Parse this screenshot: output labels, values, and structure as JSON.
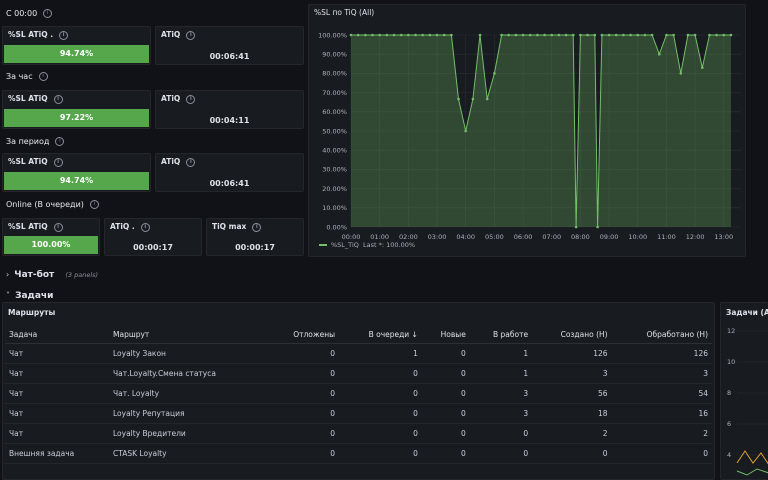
{
  "sections": {
    "since": "С 00:00",
    "hour": "За час",
    "period": "За период",
    "online": "Online (В очереди)"
  },
  "stats": {
    "s1_sl_title": "%SL ATiQ .",
    "s1_sl_value": "94.74%",
    "s1_atiq_title": "ATiQ",
    "s1_atiq_value": "00:06:41",
    "s2_sl_title": "%SL ATiQ",
    "s2_sl_value": "97.22%",
    "s2_atiq_title": "ATiQ",
    "s2_atiq_value": "00:04:11",
    "s3_sl_title": "%SL ATiQ",
    "s3_sl_value": "94.74%",
    "s3_atiq_title": "ATiQ",
    "s3_atiq_value": "00:06:41",
    "s4_sl_title": "%SL ATiQ",
    "s4_sl_value": "100.00%",
    "s4_atiq_title": "ATiQ .",
    "s4_atiq_value": "00:00:17",
    "s4_max_title": "TiQ max",
    "s4_max_value": "00:00:17"
  },
  "rows": {
    "chatbot": "Чат-бот",
    "chatbot_panels": "(3 panels)",
    "tasks": "Задачи"
  },
  "routes_panel": {
    "title": "Маршруты",
    "columns": [
      "Задача",
      "Маршрут",
      "Отложены",
      "В очереди ↓",
      "Новые",
      "В работе",
      "Создано (Н)",
      "Обработано (Н)"
    ],
    "rows": [
      [
        "Чат",
        "Loyalty Закон",
        "0",
        "1",
        "0",
        "1",
        "126",
        "126"
      ],
      [
        "Чат",
        "Чат.Loyalty.Смена статуса",
        "0",
        "0",
        "0",
        "1",
        "3",
        "3"
      ],
      [
        "Чат",
        "Чат. Loyalty",
        "0",
        "0",
        "0",
        "3",
        "56",
        "54"
      ],
      [
        "Чат",
        "Loyalty Репутация",
        "0",
        "0",
        "0",
        "3",
        "18",
        "16"
      ],
      [
        "Чат",
        "Loyalty Вредители",
        "0",
        "0",
        "0",
        "0",
        "2",
        "2"
      ],
      [
        "Внешняя задача",
        "CTASK Loyalty",
        "0",
        "0",
        "0",
        "0",
        "0",
        "0"
      ]
    ]
  },
  "side_panel": {
    "title": "Задачи (All",
    "yticks": [
      "12",
      "10",
      "8",
      "6",
      "4"
    ]
  },
  "chart_data": {
    "type": "line",
    "title": "%SL по TiQ (All)",
    "yticks": [
      "100.00%",
      "90.00%",
      "80.00%",
      "70.00%",
      "60.00%",
      "50.00%",
      "40.00%",
      "30.00%",
      "20.00%",
      "10.00%",
      "0.00%"
    ],
    "xticks": [
      "00:00",
      "01:00",
      "02:00",
      "03:00",
      "04:00",
      "05:00",
      "06:00",
      "07:00",
      "08:00",
      "09:00",
      "10:00",
      "11:00",
      "12:00",
      "13:00"
    ],
    "ylim": [
      0,
      100
    ],
    "xlim": [
      0,
      13.6
    ],
    "grid": true,
    "legend_name": "%SL_TiQ",
    "legend_last": "Last *: 100.00%",
    "color": "#73bf69",
    "series": [
      {
        "x": [
          0,
          0.25,
          0.5,
          0.75,
          1,
          1.25,
          1.5,
          1.75,
          2,
          2.25,
          2.5,
          2.75,
          3,
          3.25,
          3.5,
          3.75,
          4,
          4.25,
          4.5,
          4.75,
          5,
          5.25,
          5.5,
          5.75,
          6,
          6.25,
          6.5,
          6.75,
          7,
          7.25,
          7.5,
          7.75,
          7.85,
          8,
          8.25,
          8.5,
          8.6,
          8.75,
          9,
          9.25,
          9.5,
          9.75,
          10,
          10.25,
          10.5,
          10.75,
          11,
          11.25,
          11.5,
          11.75,
          12,
          12.25,
          12.5,
          12.75,
          13,
          13.25
        ],
        "y": [
          100,
          100,
          100,
          100,
          100,
          100,
          100,
          100,
          100,
          100,
          100,
          100,
          100,
          100,
          100,
          66.67,
          50,
          66.67,
          100,
          66.67,
          80,
          100,
          100,
          100,
          100,
          100,
          100,
          100,
          100,
          100,
          100,
          100,
          0,
          100,
          100,
          100,
          0,
          100,
          100,
          100,
          100,
          100,
          100,
          100,
          100,
          90,
          100,
          100,
          80,
          100,
          100,
          83,
          100,
          100,
          100,
          100
        ]
      }
    ]
  }
}
